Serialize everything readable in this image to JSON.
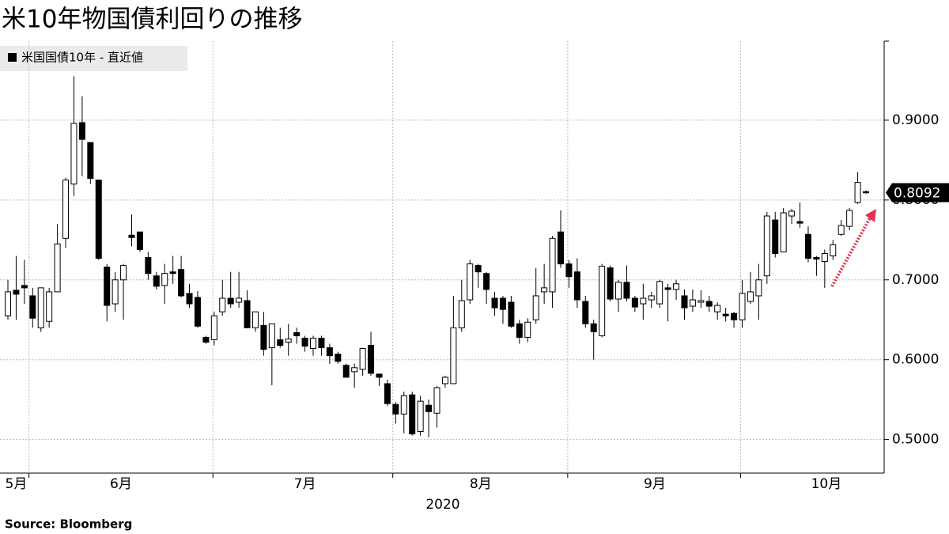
{
  "chart_data": {
    "type": "candlestick",
    "title": "米10年物国債利回りの推移",
    "xlabel": "2020",
    "source": "Source:  Bloomberg",
    "legend_position": "upper left",
    "grid": true,
    "ylim": [
      0.458,
      0.999
    ],
    "yticks": [
      {
        "value": 0.5,
        "label": "0.5000"
      },
      {
        "value": 0.6,
        "label": "0.6000"
      },
      {
        "value": 0.7,
        "label": "0.7000"
      },
      {
        "value": 0.8,
        "label": "0.8000"
      },
      {
        "value": 0.9,
        "label": "0.9000"
      }
    ],
    "xticks": [
      {
        "value": 1,
        "label": "5月"
      },
      {
        "value": 13.7,
        "label": "6月"
      },
      {
        "value": 36,
        "label": "7月"
      },
      {
        "value": 57.3,
        "label": "8月"
      },
      {
        "value": 78.4,
        "label": "9月"
      },
      {
        "value": 99.2,
        "label": "10月"
      }
    ],
    "series": [
      {
        "name": "米国国債10年 - 直近値",
        "color": "#000000",
        "open": [
          0.655,
          0.687,
          0.693,
          0.68,
          0.64,
          0.648,
          0.685,
          0.752,
          0.82,
          0.897,
          0.872,
          0.825,
          0.716,
          0.67,
          0.7,
          0.756,
          0.76,
          0.728,
          0.705,
          0.693,
          0.71,
          0.713,
          0.683,
          0.678,
          0.628,
          0.625,
          0.66,
          0.677,
          0.672,
          0.674,
          0.64,
          0.643,
          0.615,
          0.625,
          0.622,
          0.634,
          0.627,
          0.614,
          0.627,
          0.615,
          0.607,
          0.593,
          0.585,
          0.588,
          0.618,
          0.582,
          0.57,
          0.544,
          0.532,
          0.556,
          0.51,
          0.543,
          0.533,
          0.57,
          0.57,
          0.64,
          0.675,
          0.718,
          0.708,
          0.677,
          0.677,
          0.672,
          0.645,
          0.628,
          0.65,
          0.685,
          0.685,
          0.76,
          0.72,
          0.71,
          0.673,
          0.645,
          0.63,
          0.715,
          0.676,
          0.697,
          0.677,
          0.67,
          0.675,
          0.67,
          0.69,
          0.688,
          0.68,
          0.667,
          0.672,
          0.673,
          0.66,
          0.657,
          0.658,
          0.65,
          0.673,
          0.68,
          0.705,
          0.775,
          0.735,
          0.78,
          0.773,
          0.757,
          0.728,
          0.723,
          0.73,
          0.757,
          0.767,
          0.797,
          0.8105
        ],
        "high": [
          0.7,
          0.73,
          0.725,
          0.69,
          0.69,
          0.69,
          0.77,
          0.828,
          0.955,
          0.93,
          0.87,
          0.825,
          0.72,
          0.71,
          0.72,
          0.782,
          0.76,
          0.735,
          0.71,
          0.72,
          0.73,
          0.73,
          0.695,
          0.686,
          0.63,
          0.66,
          0.7,
          0.71,
          0.71,
          0.687,
          0.66,
          0.66,
          0.645,
          0.64,
          0.645,
          0.64,
          0.63,
          0.63,
          0.63,
          0.62,
          0.61,
          0.595,
          0.595,
          0.615,
          0.635,
          0.58,
          0.575,
          0.547,
          0.56,
          0.56,
          0.555,
          0.55,
          0.567,
          0.58,
          0.68,
          0.7,
          0.725,
          0.72,
          0.71,
          0.685,
          0.68,
          0.68,
          0.65,
          0.652,
          0.715,
          0.72,
          0.755,
          0.787,
          0.725,
          0.727,
          0.68,
          0.65,
          0.72,
          0.718,
          0.7,
          0.718,
          0.68,
          0.695,
          0.685,
          0.7,
          0.695,
          0.7,
          0.688,
          0.688,
          0.687,
          0.68,
          0.672,
          0.665,
          0.66,
          0.7,
          0.71,
          0.72,
          0.785,
          0.785,
          0.79,
          0.789,
          0.797,
          0.767,
          0.73,
          0.738,
          0.75,
          0.775,
          0.79,
          0.835,
          0.812
        ],
        "low": [
          0.65,
          0.65,
          0.67,
          0.64,
          0.635,
          0.64,
          0.685,
          0.74,
          0.805,
          0.83,
          0.82,
          0.725,
          0.648,
          0.66,
          0.65,
          0.742,
          0.735,
          0.7,
          0.688,
          0.67,
          0.695,
          0.678,
          0.665,
          0.64,
          0.62,
          0.618,
          0.655,
          0.665,
          0.665,
          0.64,
          0.635,
          0.605,
          0.568,
          0.615,
          0.605,
          0.62,
          0.61,
          0.605,
          0.605,
          0.595,
          0.595,
          0.578,
          0.565,
          0.58,
          0.58,
          0.567,
          0.542,
          0.52,
          0.508,
          0.505,
          0.505,
          0.503,
          0.515,
          0.565,
          0.57,
          0.635,
          0.67,
          0.69,
          0.67,
          0.655,
          0.645,
          0.64,
          0.62,
          0.622,
          0.645,
          0.67,
          0.665,
          0.715,
          0.69,
          0.665,
          0.64,
          0.6,
          0.628,
          0.673,
          0.66,
          0.673,
          0.66,
          0.65,
          0.665,
          0.665,
          0.648,
          0.675,
          0.65,
          0.66,
          0.665,
          0.66,
          0.65,
          0.648,
          0.64,
          0.64,
          0.67,
          0.65,
          0.695,
          0.728,
          0.735,
          0.77,
          0.765,
          0.722,
          0.705,
          0.69,
          0.725,
          0.755,
          0.762,
          0.795,
          0.808
        ],
        "close": [
          0.685,
          0.682,
          0.69,
          0.652,
          0.69,
          0.685,
          0.745,
          0.825,
          0.896,
          0.876,
          0.827,
          0.727,
          0.668,
          0.7,
          0.718,
          0.753,
          0.738,
          0.708,
          0.692,
          0.708,
          0.708,
          0.68,
          0.67,
          0.642,
          0.622,
          0.655,
          0.677,
          0.67,
          0.677,
          0.64,
          0.66,
          0.613,
          0.645,
          0.618,
          0.626,
          0.63,
          0.617,
          0.627,
          0.615,
          0.605,
          0.598,
          0.578,
          0.59,
          0.614,
          0.583,
          0.578,
          0.545,
          0.532,
          0.555,
          0.507,
          0.548,
          0.535,
          0.565,
          0.578,
          0.64,
          0.674,
          0.72,
          0.71,
          0.688,
          0.665,
          0.663,
          0.642,
          0.628,
          0.647,
          0.68,
          0.69,
          0.752,
          0.72,
          0.704,
          0.675,
          0.645,
          0.635,
          0.717,
          0.676,
          0.697,
          0.677,
          0.666,
          0.677,
          0.68,
          0.698,
          0.688,
          0.695,
          0.665,
          0.675,
          0.674,
          0.667,
          0.668,
          0.655,
          0.65,
          0.683,
          0.685,
          0.7,
          0.78,
          0.733,
          0.784,
          0.786,
          0.771,
          0.727,
          0.726,
          0.733,
          0.744,
          0.768,
          0.787,
          0.822,
          0.8092
        ]
      }
    ]
  }
}
